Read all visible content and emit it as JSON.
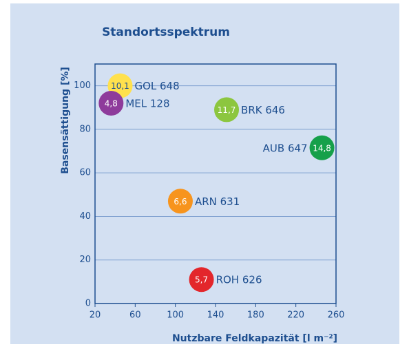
{
  "chart_data": {
    "type": "bubble",
    "title": "Standortsspektrum",
    "x_label": "Nutzbare Feldkapazität [l m⁻²]",
    "y_label": "Basensättigung [%]",
    "names": [
      "GOL 648",
      "MEL 128",
      "BRK 646",
      "AUB 647",
      "ARN 631",
      "ROH 626"
    ],
    "x": [
      45,
      36,
      151,
      246,
      105,
      126
    ],
    "values": [
      100,
      92,
      89,
      71.5,
      47,
      11
    ],
    "sizes": [
      10.1,
      4.8,
      11.7,
      14.8,
      6.6,
      5.7
    ],
    "size_labels": [
      "10,1",
      "4,8",
      "11,7",
      "14,8",
      "6,6",
      "5,7"
    ],
    "colors": [
      "#ffe14d",
      "#8e3b9b",
      "#8cc63f",
      "#16a04a",
      "#f7941d",
      "#e3262b"
    ],
    "xlim": [
      20,
      260
    ],
    "xticks": [
      20,
      60,
      100,
      140,
      180,
      220,
      260
    ],
    "ylim": [
      0,
      110
    ],
    "yticks": [
      0,
      20,
      40,
      60,
      80,
      100
    ],
    "grid": true
  }
}
